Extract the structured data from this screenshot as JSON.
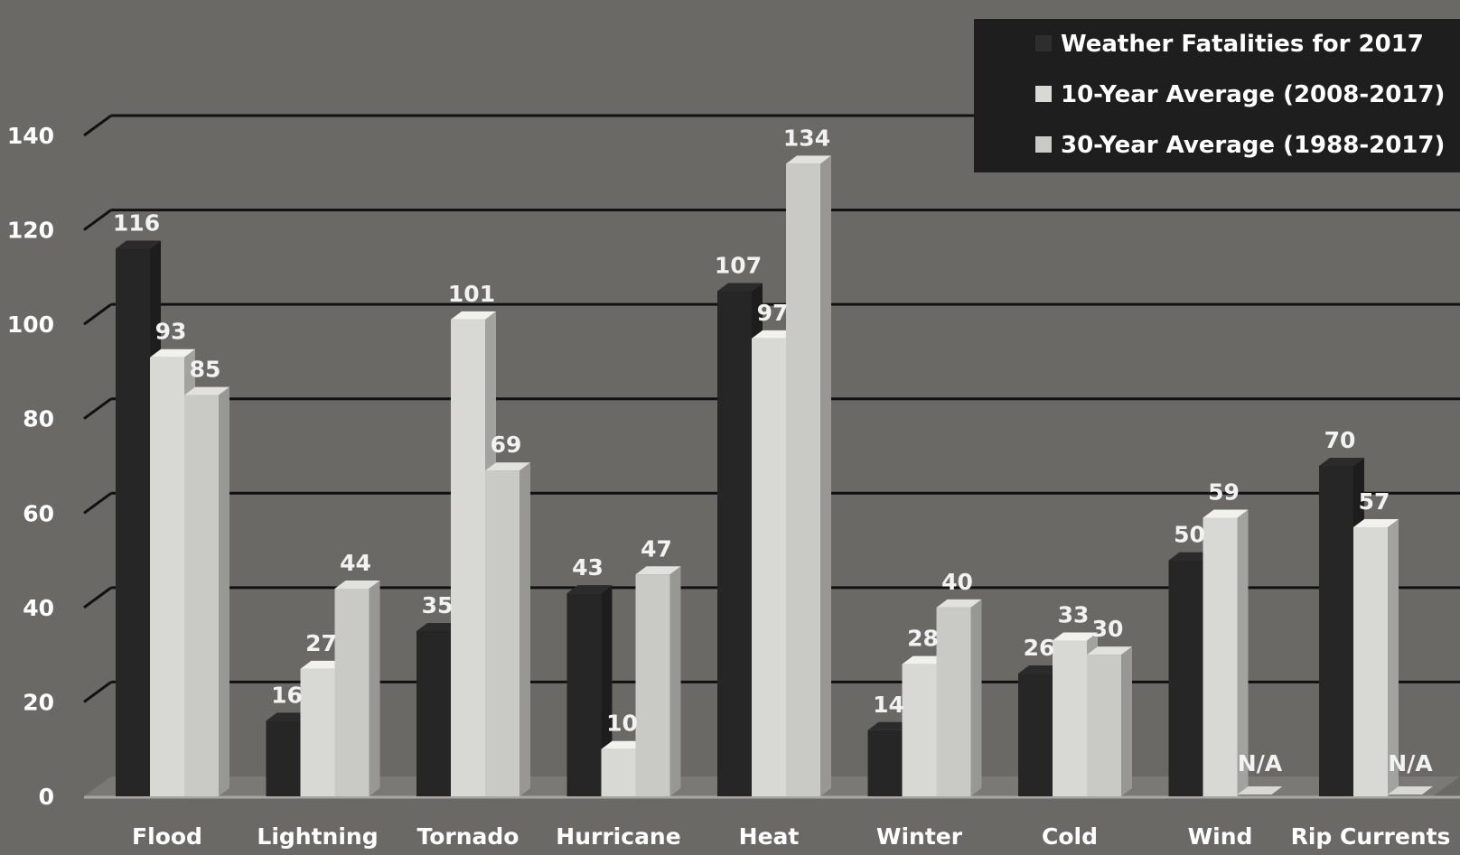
{
  "chart_data": {
    "type": "bar",
    "categories": [
      "Flood",
      "Lightning",
      "Tornado",
      "Hurricane",
      "Heat",
      "Winter",
      "Cold",
      "Wind",
      "Rip Currents"
    ],
    "series": [
      {
        "name": "Weather Fatalities for 2017",
        "color": "#262626",
        "values": [
          116,
          16,
          35,
          43,
          107,
          14,
          26,
          50,
          70
        ]
      },
      {
        "name": "10-Year Average (2008-2017)",
        "color": "#d8d8d4",
        "values": [
          93,
          27,
          101,
          10,
          97,
          28,
          33,
          59,
          57
        ]
      },
      {
        "name": "30-Year Average (1988-2017)",
        "color": "#c9c9c5",
        "values": [
          85,
          44,
          69,
          47,
          134,
          40,
          30,
          null,
          null
        ]
      }
    ],
    "missing_label": "N/A",
    "yticks": [
      0,
      20,
      40,
      60,
      80,
      100,
      120,
      140
    ],
    "ylim": [
      0,
      140
    ],
    "grid": true,
    "legend": "top-right",
    "title": "",
    "xlabel": "",
    "ylabel": ""
  }
}
